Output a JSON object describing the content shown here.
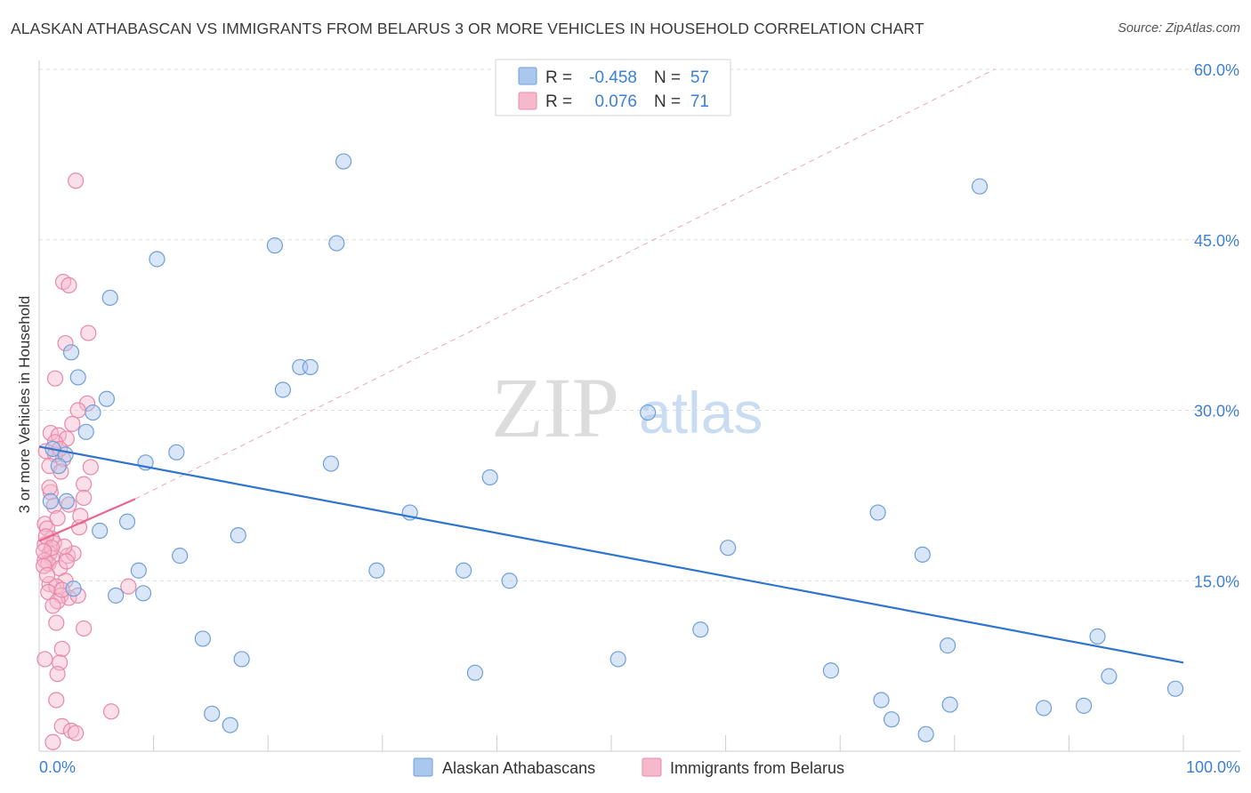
{
  "header": {
    "title": "ALASKAN ATHABASCAN VS IMMIGRANTS FROM BELARUS 3 OR MORE VEHICLES IN HOUSEHOLD CORRELATION CHART",
    "source": "Source: ZipAtlas.com"
  },
  "watermark": {
    "zip": "ZIP",
    "atlas": "atlas"
  },
  "legend": {
    "row1": {
      "r_label": "R =",
      "r_value": "-0.458",
      "n_label": "N =",
      "n_value": "57"
    },
    "row2": {
      "r_label": "R =",
      "r_value": "0.076",
      "n_label": "N =",
      "n_value": "71"
    }
  },
  "colors": {
    "blue_fill": "#aac8ee",
    "blue_stroke": "#6e9fd8",
    "blue_line": "#2f74cf",
    "pink_fill": "#f6b8cb",
    "pink_stroke": "#e888a8",
    "pink_line": "#e8658d",
    "grid": "#dddddd",
    "tick_text": "#3d7fd6"
  },
  "chart_data": {
    "type": "scatter",
    "title": "ALASKAN ATHABASCAN VS IMMIGRANTS FROM BELARUS 3 OR MORE VEHICLES IN HOUSEHOLD CORRELATION CHART",
    "xlabel": "",
    "ylabel": "3 or more Vehicles in Household",
    "xlim": [
      0,
      100
    ],
    "ylim": [
      0,
      60
    ],
    "x_tick_labels": [
      "0.0%",
      "100.0%"
    ],
    "y_ticks": [
      15,
      30,
      45,
      60
    ],
    "y_tick_labels": [
      "15.0%",
      "30.0%",
      "45.0%",
      "60.0%"
    ],
    "grid": true,
    "legend_position": "top-center",
    "series": [
      {
        "name": "Alaskan Athabascans",
        "r": -0.458,
        "n": 57,
        "trend": {
          "x": [
            0,
            100
          ],
          "y": [
            26.8,
            7.8
          ]
        },
        "points": [
          [
            26.6,
            51.9
          ],
          [
            82.2,
            49.7
          ],
          [
            26.0,
            44.7
          ],
          [
            20.6,
            44.5
          ],
          [
            10.3,
            43.3
          ],
          [
            6.2,
            39.9
          ],
          [
            2.8,
            35.1
          ],
          [
            22.8,
            33.8
          ],
          [
            23.7,
            33.8
          ],
          [
            3.4,
            32.9
          ],
          [
            21.3,
            31.8
          ],
          [
            5.9,
            31.0
          ],
          [
            4.7,
            29.8
          ],
          [
            53.2,
            29.8
          ],
          [
            4.1,
            28.1
          ],
          [
            1.2,
            26.6
          ],
          [
            2.3,
            26.1
          ],
          [
            12.0,
            26.3
          ],
          [
            9.3,
            25.4
          ],
          [
            25.5,
            25.3
          ],
          [
            1.7,
            25.1
          ],
          [
            39.4,
            24.1
          ],
          [
            2.4,
            22.0
          ],
          [
            32.4,
            21.0
          ],
          [
            73.3,
            21.0
          ],
          [
            7.7,
            20.2
          ],
          [
            5.3,
            19.4
          ],
          [
            17.4,
            19.0
          ],
          [
            60.2,
            17.9
          ],
          [
            77.2,
            17.3
          ],
          [
            12.3,
            17.2
          ],
          [
            8.7,
            15.9
          ],
          [
            29.5,
            15.9
          ],
          [
            37.1,
            15.9
          ],
          [
            41.1,
            15.0
          ],
          [
            9.1,
            13.9
          ],
          [
            6.7,
            13.7
          ],
          [
            57.8,
            10.7
          ],
          [
            14.3,
            9.9
          ],
          [
            79.4,
            9.3
          ],
          [
            92.5,
            10.1
          ],
          [
            17.7,
            8.1
          ],
          [
            50.6,
            8.1
          ],
          [
            38.1,
            6.9
          ],
          [
            69.2,
            7.1
          ],
          [
            93.5,
            6.6
          ],
          [
            99.3,
            5.5
          ],
          [
            73.6,
            4.5
          ],
          [
            79.6,
            4.1
          ],
          [
            87.8,
            3.8
          ],
          [
            91.3,
            4.0
          ],
          [
            15.1,
            3.3
          ],
          [
            74.5,
            2.8
          ],
          [
            16.7,
            2.3
          ],
          [
            77.5,
            1.5
          ],
          [
            1.0,
            22.0
          ],
          [
            3.0,
            14.3
          ]
        ]
      },
      {
        "name": "Immigrants from Belarus",
        "r": 0.076,
        "n": 71,
        "trend": {
          "x": [
            0,
            8.4
          ],
          "y": [
            18.5,
            22.2
          ]
        },
        "points": [
          [
            3.2,
            50.2
          ],
          [
            2.1,
            41.3
          ],
          [
            2.6,
            41.0
          ],
          [
            4.3,
            36.8
          ],
          [
            2.3,
            35.9
          ],
          [
            1.4,
            32.8
          ],
          [
            4.2,
            30.6
          ],
          [
            3.4,
            30.0
          ],
          [
            2.9,
            28.8
          ],
          [
            1.0,
            28.0
          ],
          [
            1.7,
            27.8
          ],
          [
            2.4,
            27.5
          ],
          [
            1.4,
            27.2
          ],
          [
            0.6,
            26.4
          ],
          [
            1.4,
            26.1
          ],
          [
            2.1,
            25.7
          ],
          [
            0.9,
            25.1
          ],
          [
            4.5,
            25.0
          ],
          [
            1.9,
            24.6
          ],
          [
            3.9,
            23.5
          ],
          [
            1.0,
            22.8
          ],
          [
            3.9,
            22.3
          ],
          [
            1.3,
            21.6
          ],
          [
            0.5,
            20.0
          ],
          [
            0.7,
            19.6
          ],
          [
            1.1,
            18.7
          ],
          [
            0.5,
            18.2
          ],
          [
            1.3,
            18.3
          ],
          [
            0.9,
            17.4
          ],
          [
            2.5,
            17.2
          ],
          [
            1.1,
            17.0
          ],
          [
            0.5,
            16.8
          ],
          [
            0.8,
            16.5
          ],
          [
            0.4,
            16.3
          ],
          [
            3.0,
            17.4
          ],
          [
            1.8,
            16.1
          ],
          [
            2.3,
            15.0
          ],
          [
            0.9,
            14.7
          ],
          [
            1.5,
            14.5
          ],
          [
            0.8,
            14.0
          ],
          [
            1.9,
            13.7
          ],
          [
            2.6,
            13.5
          ],
          [
            3.4,
            13.7
          ],
          [
            1.6,
            13.2
          ],
          [
            7.8,
            14.5
          ],
          [
            1.5,
            11.3
          ],
          [
            3.9,
            10.8
          ],
          [
            2.0,
            9.0
          ],
          [
            0.5,
            8.1
          ],
          [
            1.8,
            7.8
          ],
          [
            1.6,
            6.8
          ],
          [
            1.5,
            4.5
          ],
          [
            6.3,
            3.5
          ],
          [
            2.0,
            2.2
          ],
          [
            2.8,
            1.8
          ],
          [
            3.2,
            1.6
          ],
          [
            1.2,
            0.8
          ],
          [
            0.6,
            18.9
          ],
          [
            1.6,
            20.5
          ],
          [
            2.2,
            18.0
          ],
          [
            0.7,
            15.5
          ],
          [
            2.0,
            14.2
          ],
          [
            1.2,
            12.8
          ],
          [
            2.6,
            21.7
          ],
          [
            3.5,
            19.7
          ],
          [
            0.9,
            23.2
          ],
          [
            1.8,
            26.6
          ],
          [
            1.1,
            17.9
          ],
          [
            2.4,
            16.7
          ],
          [
            0.4,
            17.6
          ],
          [
            3.6,
            20.7
          ]
        ]
      }
    ]
  },
  "bottom_legend": {
    "series1": "Alaskan Athabascans",
    "series2": "Immigrants from Belarus"
  }
}
